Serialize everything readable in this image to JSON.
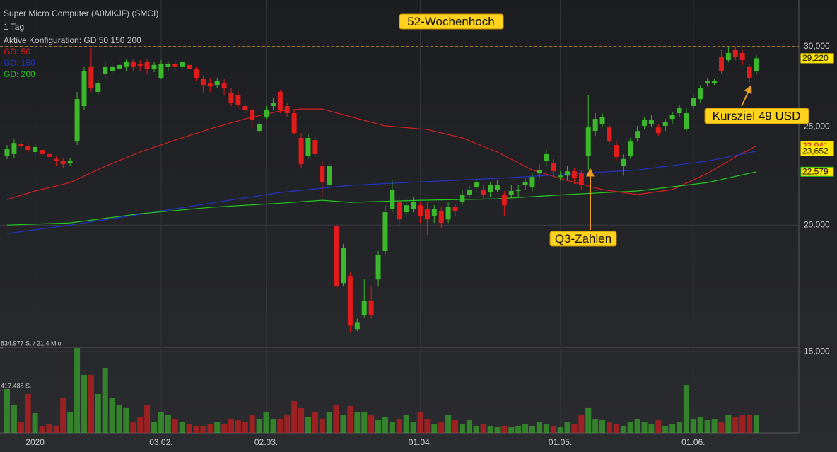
{
  "chart_data": {
    "type": "candlestick",
    "title": "Super Micro Computer (A0MKJF) (SMCI)",
    "subtitle": "1 Tag",
    "config": "Aktive Konfiguration: GD 50 150 200",
    "log_scale": true,
    "grid": true,
    "up_color": "#3cb82c",
    "down_color": "#e01c1c",
    "categories": [
      null,
      null,
      null,
      null,
      "2020",
      null,
      null,
      null,
      null,
      null,
      null,
      null,
      null,
      null,
      null,
      null,
      null,
      null,
      null,
      null,
      null,
      null,
      "03.02.",
      null,
      null,
      null,
      null,
      null,
      null,
      null,
      null,
      null,
      null,
      null,
      null,
      null,
      null,
      "02.03.",
      null,
      null,
      null,
      null,
      null,
      null,
      null,
      null,
      null,
      null,
      null,
      null,
      null,
      null,
      null,
      null,
      null,
      null,
      null,
      null,
      null,
      "01.04.",
      null,
      null,
      null,
      null,
      null,
      null,
      null,
      null,
      null,
      null,
      null,
      null,
      null,
      null,
      null,
      null,
      null,
      null,
      null,
      "01.05.",
      null,
      null,
      null,
      null,
      null,
      null,
      null,
      null,
      null,
      null,
      null,
      null,
      null,
      null,
      null,
      null,
      null,
      null,
      "01.06.",
      null,
      null,
      null,
      null,
      null,
      null,
      null,
      null,
      null
    ],
    "open": [
      23420,
      23500,
      24060,
      23950,
      23610,
      23720,
      23500,
      23240,
      23130,
      23040,
      24180,
      26210,
      28640,
      27070,
      28180,
      28400,
      28500,
      28640,
      28960,
      28870,
      28960,
      28500,
      27950,
      28640,
      28870,
      28640,
      28780,
      28500,
      27860,
      27590,
      27500,
      27590,
      26980,
      26850,
      26210,
      26000,
      24770,
      25590,
      26210,
      27070,
      26210,
      25790,
      24380,
      23420,
      24260,
      22860,
      21890,
      19940,
      17530,
      17810,
      15790,
      16300,
      16830,
      17670,
      18850,
      20760,
      21090,
      20590,
      20760,
      20920,
      20760,
      20420,
      20660,
      20260,
      20860,
      21090,
      21440,
      21790,
      21680,
      21540,
      21680,
      21440,
      21440,
      21610,
      21890,
      21790,
      22490,
      23130,
      23040,
      22310,
      22380,
      22600,
      22490,
      23420,
      24770,
      25180,
      24970,
      23990,
      22860,
      23420,
      24380,
      25060,
      25180,
      24970,
      25060,
      25460,
      25790,
      24890,
      26210,
      26630,
      27590,
      27590,
      29330,
      29100,
      29810,
      29570,
      28640,
      28400
    ],
    "high": [
      23990,
      24300,
      24260,
      24140,
      24060,
      23910,
      23680,
      23420,
      23310,
      23310,
      27070,
      28640,
      29900,
      27820,
      28960,
      28960,
      29100,
      29140,
      29140,
      29100,
      29140,
      28960,
      29100,
      29050,
      29050,
      29140,
      28960,
      28640,
      28040,
      27950,
      27950,
      27860,
      27280,
      27160,
      26420,
      26210,
      25380,
      26210,
      26720,
      27200,
      26420,
      26000,
      24650,
      24570,
      24490,
      23130,
      23040,
      20100,
      19150,
      17950,
      16170,
      17670,
      17390,
      18850,
      20920,
      22130,
      21330,
      21260,
      21330,
      21090,
      21090,
      20920,
      20860,
      21090,
      20990,
      21680,
      21890,
      22240,
      21890,
      22030,
      22130,
      21610,
      21890,
      21890,
      22240,
      22490,
      22970,
      23800,
      23240,
      22600,
      22860,
      22750,
      22670,
      26850,
      25790,
      25790,
      25180,
      24260,
      23500,
      24380,
      25060,
      25590,
      25710,
      25180,
      25460,
      25870,
      26290,
      26130,
      26850,
      27500,
      27950,
      27860,
      29810,
      30000,
      30000,
      29810,
      28870,
      29430
    ],
    "low": [
      23240,
      23310,
      23760,
      23540,
      23420,
      23310,
      23170,
      22860,
      22790,
      22860,
      23990,
      26000,
      27070,
      26850,
      27950,
      28180,
      28180,
      28400,
      28400,
      28400,
      28180,
      28310,
      27860,
      28400,
      28400,
      28400,
      28180,
      27730,
      26980,
      27070,
      27280,
      26850,
      26210,
      26130,
      25790,
      24890,
      24490,
      25460,
      26000,
      25790,
      25590,
      24570,
      22750,
      23240,
      23350,
      21330,
      21790,
      17250,
      17390,
      15660,
      15710,
      16220,
      16170,
      17390,
      18690,
      20590,
      19940,
      20420,
      20590,
      20100,
      19560,
      20100,
      19880,
      20100,
      20420,
      20920,
      21260,
      21610,
      21260,
      21330,
      21540,
      20420,
      21260,
      21330,
      21680,
      21610,
      22240,
      22860,
      22380,
      22130,
      22130,
      21960,
      21680,
      22670,
      24490,
      24970,
      23990,
      23130,
      22380,
      23240,
      24180,
      24890,
      24970,
      24490,
      24770,
      25180,
      25590,
      24770,
      26000,
      26420,
      27410,
      27500,
      28180,
      28960,
      29100,
      28780,
      27590,
      28180
    ],
    "close": [
      23800,
      24100,
      23950,
      23720,
      23880,
      23500,
      23350,
      23130,
      22970,
      23130,
      26630,
      28400,
      27280,
      27590,
      28640,
      28640,
      28780,
      28960,
      28640,
      28680,
      28500,
      28780,
      28870,
      28870,
      28640,
      28960,
      28500,
      27950,
      27500,
      27410,
      27730,
      27280,
      26420,
      26290,
      26000,
      25380,
      25180,
      26000,
      26420,
      26000,
      25790,
      24650,
      22970,
      24380,
      23500,
      22030,
      22860,
      17390,
      19000,
      15910,
      16040,
      16830,
      16300,
      18690,
      20590,
      21680,
      20260,
      20920,
      21090,
      20420,
      20260,
      20760,
      20100,
      20860,
      20660,
      21440,
      21680,
      22030,
      21440,
      21890,
      21890,
      20920,
      21610,
      21680,
      22030,
      22310,
      22670,
      23500,
      22600,
      22380,
      22600,
      22240,
      21890,
      24970,
      25460,
      25590,
      24180,
      23350,
      23240,
      24180,
      24770,
      25380,
      25380,
      24650,
      25300,
      25710,
      26130,
      25790,
      26720,
      27280,
      27730,
      27730,
      28400,
      29570,
      29330,
      29100,
      27950,
      29220
    ],
    "last_label": "29,220",
    "ylim": [
      12470,
      33360
    ],
    "yticks": [
      {
        "value": 30000,
        "label": "30,000"
      },
      {
        "value": 25000,
        "label": "25,000"
      },
      {
        "value": 20000,
        "label": "20,000"
      },
      {
        "value": 15000,
        "label": "15,000"
      }
    ],
    "week52_high": 30000,
    "series": [
      {
        "name": "GD: 50",
        "color": "#d42020",
        "end_label": "23,941",
        "x": [
          0,
          4,
          9,
          14,
          19,
          24,
          29,
          34,
          39,
          42,
          45,
          49,
          54,
          60,
          65,
          70,
          75,
          80,
          85,
          90,
          95,
          100,
          104,
          107
        ],
        "values": [
          21190,
          21610,
          22030,
          22860,
          23610,
          24260,
          24890,
          25460,
          25920,
          26040,
          26040,
          25590,
          25060,
          24850,
          24380,
          23610,
          22670,
          22130,
          21680,
          21440,
          21680,
          22490,
          23350,
          23941
        ]
      },
      {
        "name": "GD: 150",
        "color": "#2233c8",
        "end_label": "23,652",
        "x": [
          0,
          9,
          19,
          29,
          39,
          49,
          59,
          70,
          80,
          90,
          100,
          107
        ],
        "values": [
          19620,
          20000,
          20490,
          21020,
          21540,
          21890,
          22060,
          22240,
          22450,
          22670,
          23130,
          23652
        ]
      },
      {
        "name": "GD: 200",
        "color": "#22c81e",
        "end_label": "22,579",
        "x": [
          0,
          9,
          19,
          29,
          39,
          45,
          49,
          59,
          70,
          80,
          90,
          100,
          107
        ],
        "values": [
          20000,
          20100,
          20520,
          20820,
          21020,
          21160,
          21060,
          21160,
          21230,
          21440,
          21610,
          22030,
          22579
        ]
      }
    ],
    "volume": {
      "ylim": [
        0,
        834977
      ],
      "yticks": [
        {
          "value": 834977,
          "label": "834.977 S. / 21,4 Mio."
        },
        {
          "value": 417488,
          "label": "417.488 S."
        }
      ],
      "values": [
        431000,
        278000,
        104000,
        383000,
        195000,
        70000,
        83000,
        70000,
        348000,
        209000,
        834977,
        571000,
        571000,
        383000,
        640000,
        348000,
        278000,
        244000,
        104000,
        153000,
        278000,
        104000,
        209000,
        174000,
        139000,
        104000,
        83000,
        70000,
        70000,
        83000,
        104000,
        83000,
        139000,
        125000,
        104000,
        174000,
        139000,
        209000,
        139000,
        139000,
        174000,
        313000,
        244000,
        153000,
        209000,
        139000,
        209000,
        278000,
        174000,
        264000,
        209000,
        209000,
        174000,
        125000,
        153000,
        104000,
        139000,
        174000,
        104000,
        209000,
        139000,
        83000,
        104000,
        174000,
        125000,
        83000,
        125000,
        70000,
        83000,
        70000,
        56000,
        70000,
        56000,
        70000,
        83000,
        70000,
        104000,
        83000,
        70000,
        56000,
        104000,
        83000,
        174000,
        244000,
        139000,
        125000,
        104000,
        83000,
        70000,
        104000,
        139000,
        104000,
        83000,
        125000,
        70000,
        83000,
        104000,
        473000,
        139000,
        153000,
        125000,
        139000,
        104000,
        174000,
        153000,
        174000,
        174000,
        174000
      ]
    },
    "annotations": [
      "52-Wochenhoch",
      "Q3-Zahlen",
      "Kursziel 49 USD"
    ]
  }
}
